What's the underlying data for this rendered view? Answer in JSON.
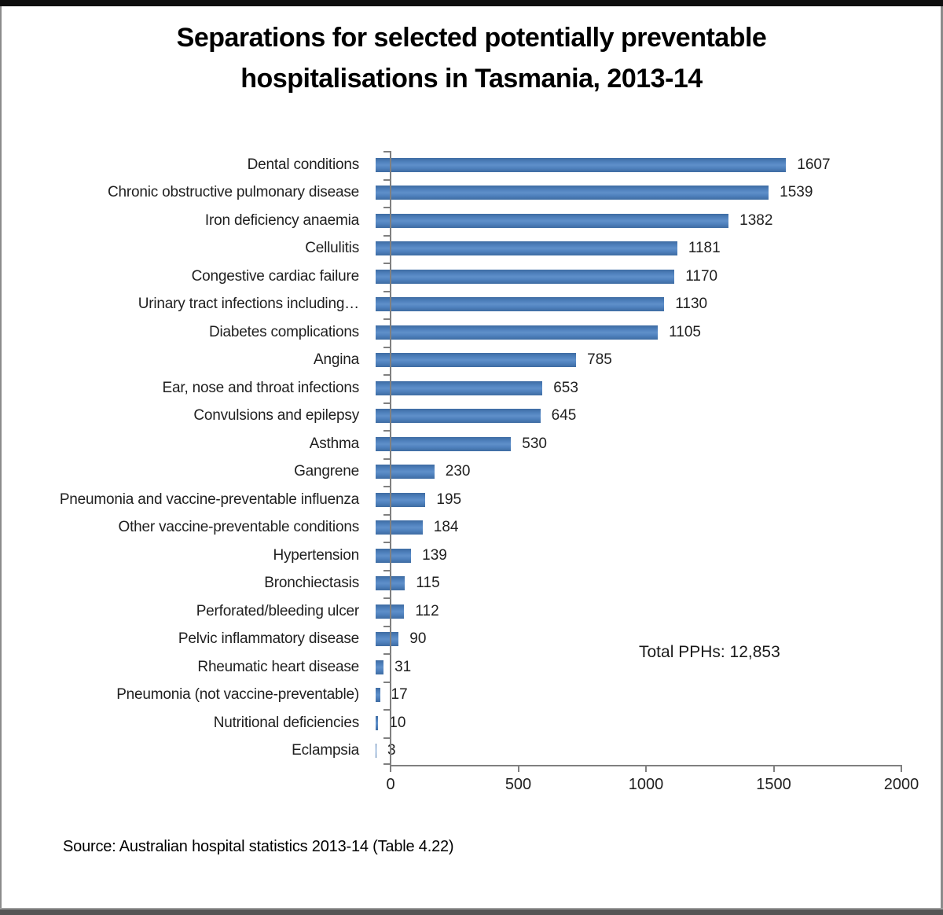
{
  "title": {
    "line1": "Separations for selected potentially preventable",
    "line2": "hospitalisations in Tasmania, 2013-14"
  },
  "annotation": {
    "total_label": "Total PPHs: 12,853"
  },
  "source": {
    "text": "Source: Australian hospital statistics 2013-14 (Table 4.22)"
  },
  "chart_data": {
    "type": "bar",
    "orientation": "horizontal",
    "title": "Separations for selected potentially preventable hospitalisations in Tasmania, 2013-14",
    "categories": [
      "Dental conditions",
      "Chronic obstructive pulmonary disease",
      "Iron deficiency anaemia",
      "Cellulitis",
      "Congestive cardiac failure",
      "Urinary tract infections including…",
      "Diabetes complications",
      "Angina",
      "Ear, nose and throat infections",
      "Convulsions and epilepsy",
      "Asthma",
      "Gangrene",
      "Pneumonia and vaccine-preventable influenza",
      "Other vaccine-preventable conditions",
      "Hypertension",
      "Bronchiectasis",
      "Perforated/bleeding ulcer",
      "Pelvic inflammatory disease",
      "Rheumatic heart disease",
      "Pneumonia (not vaccine-preventable)",
      "Nutritional deficiencies",
      "Eclampsia"
    ],
    "values": [
      1607,
      1539,
      1382,
      1181,
      1170,
      1130,
      1105,
      785,
      653,
      645,
      530,
      230,
      195,
      184,
      139,
      115,
      112,
      90,
      31,
      17,
      10,
      3
    ],
    "value_labels": [
      "1607",
      "1539",
      "1382",
      "1181",
      "1170",
      "1130",
      "1105",
      "785",
      "653",
      "645",
      "530",
      "230",
      "195",
      "184",
      "139",
      "115",
      "112",
      "90",
      "31",
      "17",
      "10",
      "3"
    ],
    "xlim": [
      0,
      2000
    ],
    "x_ticks": [
      0,
      500,
      1000,
      1500,
      2000
    ],
    "x_tick_labels": [
      "0",
      "500",
      "1000",
      "1500",
      "2000"
    ],
    "grid": false,
    "legend": "none",
    "bar_color": "#4f81bd",
    "axis_color": "#808080",
    "annotation_total": "Total PPHs: 12,853"
  }
}
